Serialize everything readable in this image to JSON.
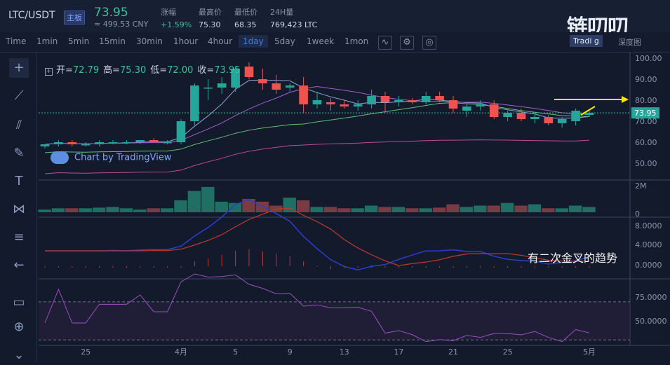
{
  "header": {
    "pair": "LTC/USDT",
    "badge": "主板",
    "price": "73.95",
    "price_cny": "≈ 499.53 CNY",
    "stats": [
      {
        "label": "涨幅",
        "value": "+1.59%",
        "up": true
      },
      {
        "label": "最高价",
        "value": "75.30",
        "up": false
      },
      {
        "label": "最低价",
        "value": "68.35",
        "up": false
      },
      {
        "label": "24H量",
        "value": "769,423 LTC",
        "up": false
      }
    ],
    "logo": "链叨叨"
  },
  "toolbar": {
    "timeframes": [
      "Time",
      "1min",
      "5min",
      "15min",
      "30min",
      "1hour",
      "4hour",
      "1day",
      "5day",
      "1week",
      "1mon"
    ],
    "selected": "1day",
    "icons": [
      "indicator-icon",
      "settings-icon",
      "screenshot-icon"
    ],
    "view_tabs": [
      "Tradi g",
      "深度图"
    ]
  },
  "sidebar": {
    "tools": [
      "crosshair-icon",
      "trend-line-icon",
      "pitchfork-icon",
      "brush-icon",
      "text-icon",
      "pattern-icon",
      "fib-icon",
      "back-arrow-icon",
      "ruler-icon",
      "zoom-icon",
      "chevron-down-icon"
    ]
  },
  "legend": {
    "open_label": "开=",
    "open": "72.79",
    "high_label": "高=",
    "high": "75.30",
    "low_label": "低=",
    "low": "72.00",
    "close_label": "收=",
    "close": "73.95"
  },
  "watermark": "Chart by TradingView",
  "annotation": "有二次金叉的趋势",
  "colors": {
    "up": "#26a69a",
    "down": "#ef5350",
    "bg": "#131a2c"
  },
  "chart_data": {
    "type": "candlestick",
    "price_axis": {
      "ticks": [
        "100.00",
        "90.00",
        "80.00",
        "70.00",
        "60.00",
        "50.00"
      ],
      "range": [
        40,
        100
      ],
      "last": "73.95"
    },
    "x_ticks": [
      {
        "label": "25",
        "i": 3
      },
      {
        "label": "4月",
        "i": 10
      },
      {
        "label": "5",
        "i": 14
      },
      {
        "label": "9",
        "i": 18
      },
      {
        "label": "13",
        "i": 22
      },
      {
        "label": "17",
        "i": 26
      },
      {
        "label": "21",
        "i": 30
      },
      {
        "label": "25",
        "i": 34
      },
      {
        "label": "5月",
        "i": 40
      }
    ],
    "candles": [
      [
        58,
        59,
        57,
        59
      ],
      [
        59,
        61,
        58,
        60
      ],
      [
        60,
        61,
        58,
        59
      ],
      [
        59,
        60,
        58,
        59
      ],
      [
        59,
        61,
        58,
        60
      ],
      [
        60,
        61,
        59,
        60
      ],
      [
        60,
        61,
        59,
        60
      ],
      [
        60,
        61,
        59,
        61
      ],
      [
        61,
        62,
        60,
        60
      ],
      [
        60,
        61,
        59,
        60
      ],
      [
        60,
        71,
        59,
        70
      ],
      [
        70,
        88,
        68,
        87
      ],
      [
        86,
        90,
        80,
        86
      ],
      [
        86,
        91,
        83,
        88
      ],
      [
        86,
        96,
        84,
        95
      ],
      [
        96,
        98,
        90,
        91
      ],
      [
        90,
        95,
        85,
        88
      ],
      [
        88,
        92,
        83,
        85
      ],
      [
        86,
        88,
        84,
        87
      ],
      [
        87,
        91,
        74,
        78
      ],
      [
        78,
        84,
        76,
        80
      ],
      [
        79,
        81,
        75,
        78
      ],
      [
        78,
        80,
        76,
        77
      ],
      [
        77,
        80,
        75,
        78
      ],
      [
        78,
        85,
        76,
        82
      ],
      [
        82,
        84,
        74,
        79
      ],
      [
        79,
        82,
        77,
        80
      ],
      [
        80,
        81,
        78,
        79
      ],
      [
        79,
        84,
        78,
        82
      ],
      [
        82,
        84,
        79,
        80
      ],
      [
        80,
        82,
        74,
        76
      ],
      [
        75,
        78,
        72,
        77
      ],
      [
        77,
        80,
        75,
        78
      ],
      [
        78,
        80,
        71,
        72
      ],
      [
        72,
        75,
        70,
        74
      ],
      [
        74,
        76,
        70,
        71
      ],
      [
        71,
        74,
        69,
        72
      ],
      [
        72,
        73,
        68,
        69
      ],
      [
        69,
        72,
        67,
        71
      ],
      [
        70,
        76,
        68,
        75
      ],
      [
        73,
        75,
        72,
        74
      ]
    ],
    "volume": {
      "ticks": [
        "2M",
        "0"
      ],
      "values": [
        0.2,
        0.3,
        0.3,
        0.3,
        0.35,
        0.4,
        0.3,
        0.2,
        0.3,
        0.3,
        0.9,
        1.6,
        1.9,
        0.8,
        0.7,
        1.0,
        0.8,
        0.5,
        1.1,
        0.9,
        0.4,
        0.4,
        0.3,
        0.3,
        0.5,
        0.4,
        0.4,
        0.3,
        0.3,
        0.35,
        0.6,
        0.4,
        0.5,
        0.5,
        0.7,
        0.5,
        0.6,
        0.3,
        0.3,
        0.5,
        0.4
      ]
    },
    "macd": {
      "ticks": [
        "8.0000",
        "4.0000",
        "0.0000"
      ]
    },
    "rsi": {
      "ticks": [
        "75.0000",
        "50.0000"
      ]
    }
  }
}
